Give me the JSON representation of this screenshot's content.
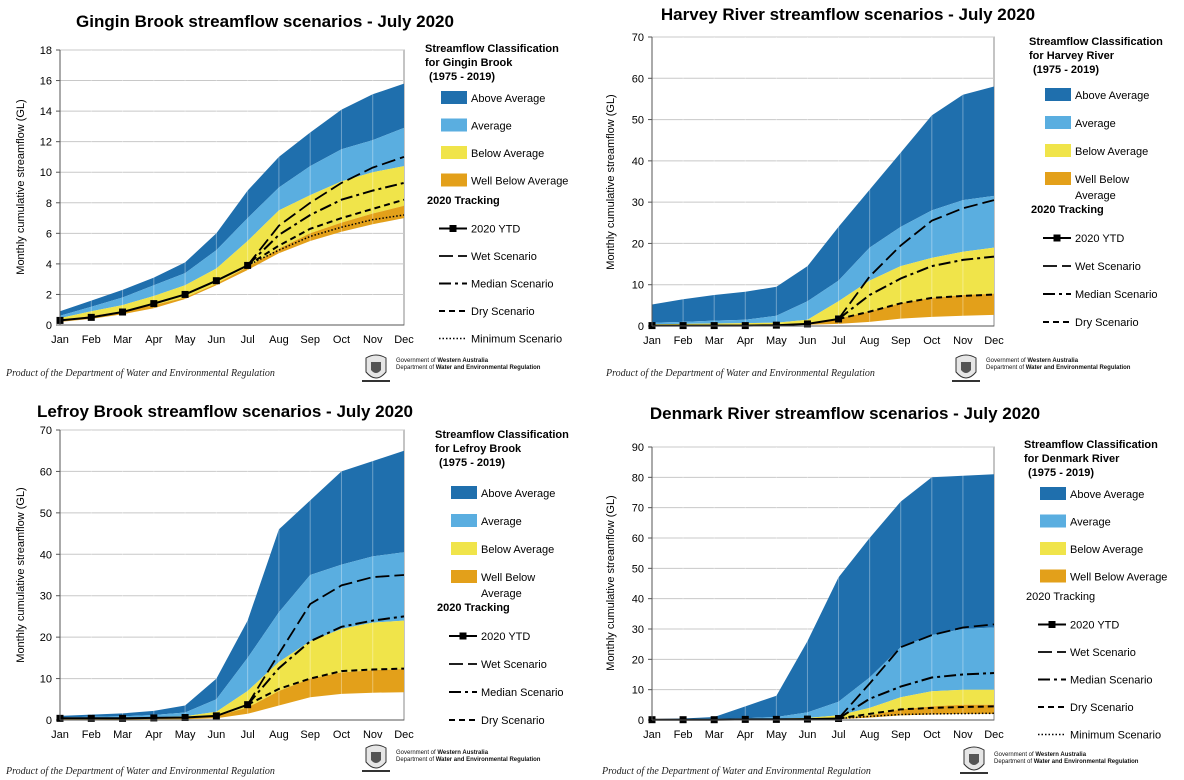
{
  "footer_text": "Product of the Department of Water and Environmental Regulation",
  "gov_line1_prefix": "Government of ",
  "gov_line1_bold": "Western Australia",
  "gov_line2_prefix": "Department of ",
  "gov_line2_bold": "Water and Environmental Regulation",
  "colors": {
    "above_average": "#1f6fad",
    "average": "#5aaee0",
    "below_average": "#f0e44a",
    "well_below_average": "#e3a01a"
  },
  "chart_data": [
    {
      "id": "gingin",
      "type": "area",
      "title": "Gingin Brook streamflow scenarios - July 2020",
      "ylabel": "Monthly cumulative streamflow (GL)",
      "categories": [
        "Jan",
        "Feb",
        "Mar",
        "Apr",
        "May",
        "Jun",
        "Jul",
        "Aug",
        "Sep",
        "Oct",
        "Nov",
        "Dec"
      ],
      "ylim": [
        0,
        18
      ],
      "yticks": [
        0,
        2,
        4,
        6,
        8,
        10,
        12,
        14,
        16,
        18
      ],
      "gridlines": true,
      "legend_title_lines": [
        "Streamflow Classification",
        "for Gingin Brook",
        "(1975 - 2019)"
      ],
      "tracking_label": "2020 Tracking",
      "tracking_bold": true,
      "bands": [
        {
          "name": "Above Average",
          "color": "#1f6fad",
          "values": [
            0.9,
            1.6,
            2.3,
            3.1,
            4.1,
            6.0,
            8.8,
            11.0,
            12.6,
            14.1,
            15.1,
            15.8
          ]
        },
        {
          "name": "Average",
          "color": "#5aaee0",
          "values": [
            0.6,
            1.2,
            1.8,
            2.6,
            3.4,
            4.9,
            7.0,
            9.0,
            10.4,
            11.5,
            12.1,
            12.9
          ]
        },
        {
          "name": "Below Average",
          "color": "#f0e44a",
          "values": [
            0.45,
            0.9,
            1.3,
            1.9,
            2.6,
            3.7,
            5.5,
            7.5,
            8.5,
            9.4,
            10.0,
            10.4
          ]
        },
        {
          "name": "Well Below Average",
          "color": "#e3a01a",
          "values": [
            0.3,
            0.6,
            0.9,
            1.3,
            1.8,
            2.7,
            3.8,
            5.0,
            6.0,
            6.7,
            7.3,
            7.8
          ]
        }
      ],
      "floor": [
        0.2,
        0.4,
        0.7,
        1.1,
        1.7,
        2.6,
        3.6,
        4.7,
        5.5,
        6.1,
        6.6,
        7.0
      ],
      "series": [
        {
          "name": "2020 YTD",
          "style": "ytd",
          "values": [
            0.3,
            0.5,
            0.85,
            1.4,
            2.0,
            2.9,
            3.9,
            null,
            null,
            null,
            null,
            null
          ]
        },
        {
          "name": "Wet Scenario",
          "style": "wet",
          "values": [
            null,
            null,
            null,
            null,
            null,
            null,
            3.9,
            6.5,
            8.0,
            9.3,
            10.3,
            11.0
          ]
        },
        {
          "name": "Median Scenario",
          "style": "median",
          "values": [
            null,
            null,
            null,
            null,
            null,
            null,
            3.9,
            5.9,
            7.2,
            8.2,
            8.8,
            9.3
          ]
        },
        {
          "name": "Dry Scenario",
          "style": "dry",
          "values": [
            null,
            null,
            null,
            null,
            null,
            null,
            3.9,
            5.2,
            6.3,
            7.0,
            7.6,
            8.2
          ]
        },
        {
          "name": "Minimum Scenario",
          "style": "minimum",
          "values": [
            null,
            null,
            null,
            null,
            null,
            null,
            3.9,
            4.9,
            5.8,
            6.4,
            6.9,
            7.2
          ]
        }
      ]
    },
    {
      "id": "harvey",
      "type": "area",
      "title": "Harvey River streamflow scenarios - July 2020",
      "ylabel": "Monthly cumulative streamflow (GL)",
      "categories": [
        "Jan",
        "Feb",
        "Mar",
        "Apr",
        "May",
        "Jun",
        "Jul",
        "Aug",
        "Sep",
        "Oct",
        "Nov",
        "Dec"
      ],
      "ylim": [
        0,
        70
      ],
      "yticks": [
        0,
        10,
        20,
        30,
        40,
        50,
        60,
        70
      ],
      "gridlines": true,
      "legend_title_lines": [
        "Streamflow Classification",
        "for Harvey River",
        "(1975 - 2019)"
      ],
      "tracking_label": "2020 Tracking",
      "tracking_bold": true,
      "bands": [
        {
          "name": "Above Average",
          "color": "#1f6fad",
          "values": [
            5.2,
            6.5,
            7.5,
            8.3,
            9.5,
            14.5,
            24.0,
            33.0,
            42.0,
            51.0,
            56.0,
            58.0
          ]
        },
        {
          "name": "Average",
          "color": "#5aaee0",
          "values": [
            0.8,
            1.0,
            1.3,
            1.5,
            2.5,
            6.0,
            11.0,
            19.0,
            24.0,
            28.0,
            30.5,
            31.5
          ]
        },
        {
          "name": "Below Average",
          "color": "#f0e44a",
          "values": [
            0.4,
            0.5,
            0.6,
            0.7,
            0.8,
            1.5,
            6.0,
            11.0,
            14.5,
            16.5,
            18.0,
            19.0
          ]
        },
        {
          "name": "Well Below Average",
          "color": "#e3a01a",
          "values": [
            0.2,
            0.2,
            0.3,
            0.3,
            0.4,
            0.6,
            1.8,
            3.5,
            5.5,
            6.8,
            7.5,
            7.8
          ]
        }
      ],
      "floor": [
        0.1,
        0.1,
        0.1,
        0.2,
        0.2,
        0.3,
        0.5,
        1.0,
        1.8,
        2.2,
        2.5,
        2.7
      ],
      "series": [
        {
          "name": "2020 YTD",
          "style": "ytd",
          "values": [
            0.1,
            0.1,
            0.1,
            0.1,
            0.2,
            0.5,
            1.7,
            null,
            null,
            null,
            null,
            null
          ]
        },
        {
          "name": "Wet Scenario",
          "style": "wet",
          "values": [
            null,
            null,
            null,
            null,
            null,
            null,
            1.7,
            12.0,
            19.5,
            25.5,
            28.5,
            30.5
          ]
        },
        {
          "name": "Median Scenario",
          "style": "median",
          "values": [
            null,
            null,
            null,
            null,
            null,
            null,
            1.7,
            7.5,
            11.5,
            14.5,
            16.0,
            16.8
          ]
        },
        {
          "name": "Dry Scenario",
          "style": "dry",
          "values": [
            null,
            null,
            null,
            null,
            null,
            null,
            1.7,
            3.5,
            5.5,
            6.8,
            7.3,
            7.6
          ]
        }
      ]
    },
    {
      "id": "lefroy",
      "type": "area",
      "title": "Lefroy Brook streamflow scenarios - July 2020",
      "ylabel": "Monthly cumulative streamflow (GL)",
      "categories": [
        "Jan",
        "Feb",
        "Mar",
        "Apr",
        "May",
        "Jun",
        "Jul",
        "Aug",
        "Sep",
        "Oct",
        "Nov",
        "Dec"
      ],
      "ylim": [
        0,
        70
      ],
      "yticks": [
        0,
        10,
        20,
        30,
        40,
        50,
        60,
        70
      ],
      "gridlines": true,
      "legend_title_lines": [
        "Streamflow Classification",
        "for Lefroy Brook",
        "(1975 - 2019)"
      ],
      "tracking_label": "2020 Tracking",
      "tracking_bold": true,
      "bands": [
        {
          "name": "Above Average",
          "color": "#1f6fad",
          "values": [
            1.0,
            1.3,
            1.6,
            2.2,
            3.5,
            10.0,
            24.0,
            46.0,
            53.0,
            60.0,
            62.5,
            65.0
          ]
        },
        {
          "name": "Average",
          "color": "#5aaee0",
          "values": [
            0.6,
            0.8,
            0.9,
            1.2,
            1.8,
            5.0,
            15.0,
            26.0,
            35.0,
            37.5,
            39.5,
            40.5
          ]
        },
        {
          "name": "Below Average",
          "color": "#f0e44a",
          "values": [
            0.3,
            0.4,
            0.5,
            0.6,
            0.9,
            2.0,
            7.0,
            14.0,
            19.0,
            22.0,
            23.5,
            24.0
          ]
        },
        {
          "name": "Well Below Average",
          "color": "#e3a01a",
          "values": [
            0.2,
            0.2,
            0.3,
            0.3,
            0.5,
            1.0,
            3.0,
            7.0,
            10.0,
            11.5,
            12.0,
            12.3
          ]
        }
      ],
      "floor": [
        0.1,
        0.1,
        0.1,
        0.2,
        0.2,
        0.4,
        1.5,
        3.5,
        5.5,
        6.3,
        6.6,
        6.7
      ],
      "series": [
        {
          "name": "2020 YTD",
          "style": "ytd",
          "values": [
            0.4,
            0.4,
            0.4,
            0.5,
            0.6,
            1.0,
            3.7,
            null,
            null,
            null,
            null,
            null
          ]
        },
        {
          "name": "Wet Scenario",
          "style": "wet",
          "values": [
            null,
            null,
            null,
            null,
            null,
            null,
            3.7,
            16.0,
            28.0,
            32.5,
            34.5,
            35.0
          ]
        },
        {
          "name": "Median Scenario",
          "style": "median",
          "values": [
            null,
            null,
            null,
            null,
            null,
            null,
            3.7,
            12.5,
            19.0,
            22.5,
            24.0,
            25.0
          ]
        },
        {
          "name": "Dry Scenario",
          "style": "dry",
          "values": [
            null,
            null,
            null,
            null,
            null,
            null,
            3.7,
            7.5,
            10.0,
            11.8,
            12.2,
            12.4
          ]
        }
      ]
    },
    {
      "id": "denmark",
      "type": "area",
      "title": "Denmark River streamflow scenarios - July 2020",
      "ylabel": "Monthly cumulative streamflow (GL)",
      "categories": [
        "Jan",
        "Feb",
        "Mar",
        "Apr",
        "May",
        "Jun",
        "Jul",
        "Aug",
        "Sep",
        "Oct",
        "Nov",
        "Dec"
      ],
      "ylim": [
        0,
        90
      ],
      "yticks": [
        0,
        10,
        20,
        30,
        40,
        50,
        60,
        70,
        80,
        90
      ],
      "gridlines": true,
      "legend_title_lines": [
        "Streamflow Classification",
        "for Denmark River",
        "(1975 - 2019)"
      ],
      "tracking_label": "2020 Tracking",
      "tracking_bold": false,
      "bands": [
        {
          "name": "Above Average",
          "color": "#1f6fad",
          "values": [
            0.3,
            0.5,
            1.0,
            4.5,
            8.0,
            26.0,
            47.0,
            60.0,
            72.0,
            80.0,
            80.5,
            81.0
          ]
        },
        {
          "name": "Average",
          "color": "#5aaee0",
          "values": [
            0.2,
            0.3,
            0.4,
            0.6,
            1.0,
            2.5,
            6.0,
            14.0,
            24.0,
            28.0,
            30.0,
            30.5
          ]
        },
        {
          "name": "Below Average",
          "color": "#f0e44a",
          "values": [
            0.1,
            0.2,
            0.2,
            0.3,
            0.4,
            0.7,
            1.5,
            4.0,
            7.5,
            9.5,
            10.0,
            10.0
          ]
        },
        {
          "name": "Well Below Average",
          "color": "#e3a01a",
          "values": [
            0.1,
            0.1,
            0.1,
            0.2,
            0.2,
            0.3,
            0.5,
            1.5,
            3.5,
            4.5,
            5.0,
            5.0
          ]
        }
      ],
      "floor": [
        0.0,
        0.0,
        0.1,
        0.1,
        0.1,
        0.2,
        0.3,
        0.8,
        1.5,
        1.8,
        2.0,
        2.0
      ],
      "series": [
        {
          "name": "2020 YTD",
          "style": "ytd",
          "values": [
            0.1,
            0.1,
            0.1,
            0.2,
            0.2,
            0.3,
            0.5,
            null,
            null,
            null,
            null,
            null
          ]
        },
        {
          "name": "Wet Scenario",
          "style": "wet",
          "values": [
            null,
            null,
            null,
            null,
            null,
            null,
            0.5,
            12.0,
            24.0,
            28.0,
            30.5,
            31.5
          ]
        },
        {
          "name": "Median Scenario",
          "style": "median",
          "values": [
            null,
            null,
            null,
            null,
            null,
            null,
            0.5,
            7.0,
            11.0,
            14.0,
            15.0,
            15.5
          ]
        },
        {
          "name": "Dry Scenario",
          "style": "dry",
          "values": [
            null,
            null,
            null,
            null,
            null,
            null,
            0.5,
            2.0,
            3.5,
            4.0,
            4.3,
            4.5
          ]
        },
        {
          "name": "Minimum Scenario",
          "style": "minimum",
          "values": [
            null,
            null,
            null,
            null,
            null,
            null,
            0.5,
            1.2,
            1.8,
            2.0,
            2.1,
            2.2
          ]
        }
      ]
    }
  ]
}
